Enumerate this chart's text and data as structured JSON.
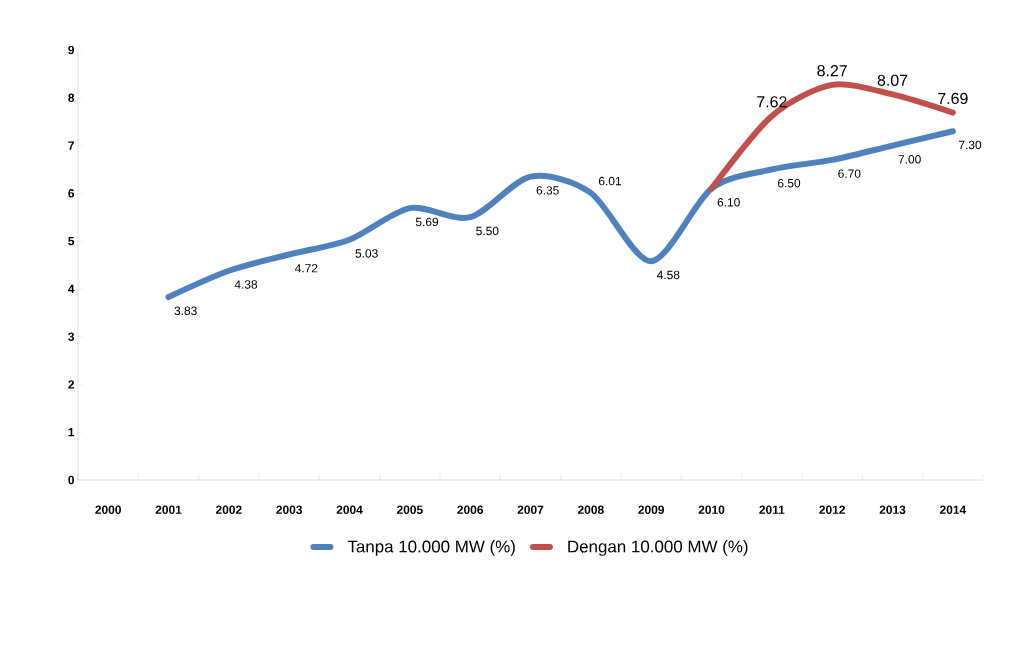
{
  "chart_data": {
    "type": "line",
    "categories": [
      "2000",
      "2001",
      "2002",
      "2003",
      "2004",
      "2005",
      "2006",
      "2007",
      "2008",
      "2009",
      "2010",
      "2011",
      "2012",
      "2013",
      "2014"
    ],
    "series": [
      {
        "name": "Tanpa 10.000 MW (%)",
        "color": "#4f81bd",
        "values": [
          null,
          3.83,
          4.38,
          4.72,
          5.03,
          5.69,
          5.5,
          6.35,
          6.01,
          4.58,
          6.1,
          6.5,
          6.7,
          7.0,
          7.3
        ],
        "value_labels": [
          null,
          "3.83",
          "4.38",
          "4.72",
          "5.03",
          "5.69",
          "5.50",
          "6.35",
          "6.01",
          "4.58",
          "6.10",
          "6.50",
          "6.70",
          "7.00",
          "7.30"
        ]
      },
      {
        "name": "Dengan 10.000 MW (%)",
        "color": "#c0504d",
        "values": [
          null,
          null,
          null,
          null,
          null,
          null,
          null,
          null,
          null,
          null,
          6.1,
          7.62,
          8.27,
          8.07,
          7.69
        ],
        "value_labels": [
          null,
          null,
          null,
          null,
          null,
          null,
          null,
          null,
          null,
          null,
          null,
          "7.62",
          "8.27",
          "8.07",
          "7.69"
        ]
      }
    ],
    "ylim": [
      0,
      9
    ],
    "yticks": [
      0,
      1,
      2,
      3,
      4,
      5,
      6,
      7,
      8,
      9
    ],
    "legend": "bottom",
    "marker": "none",
    "line_style": "solid"
  }
}
